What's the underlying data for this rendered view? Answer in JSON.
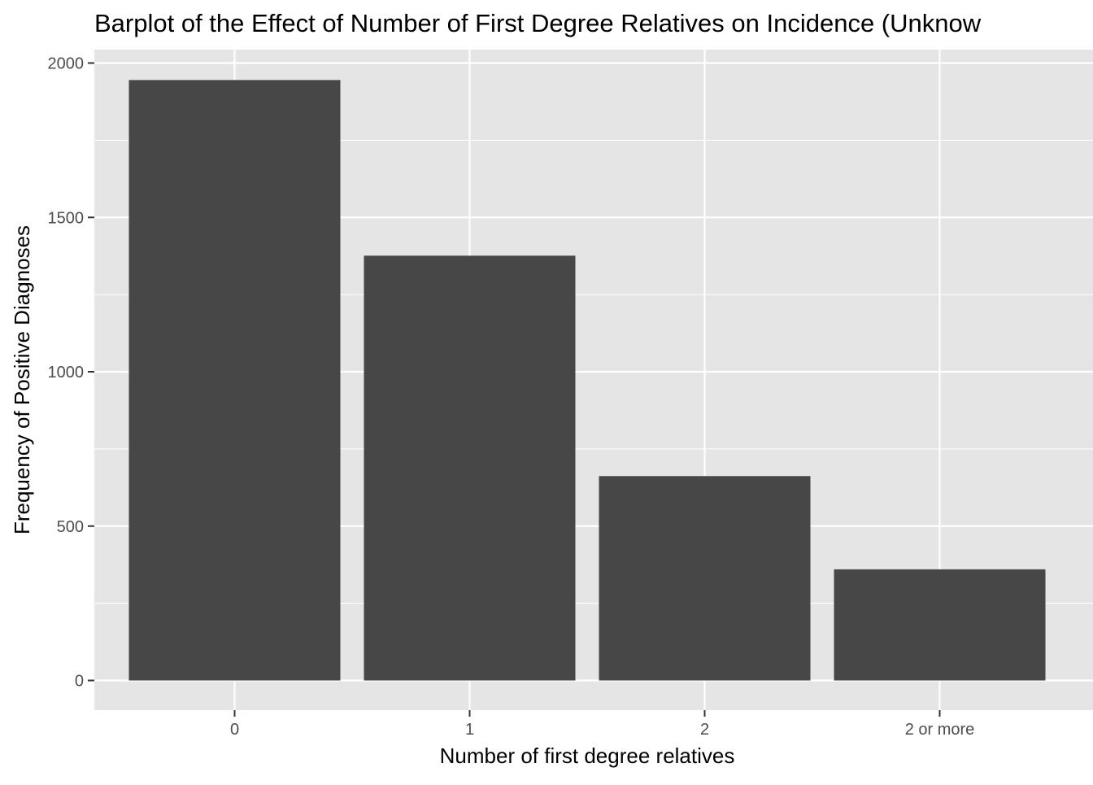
{
  "chart_data": {
    "type": "bar",
    "title": "Barplot of the Effect of Number of First Degree Relatives on Incidence (Unknow",
    "xlabel": "Number of first degree relatives",
    "ylabel": "Frequency of Positive Diagnoses",
    "categories": [
      "0",
      "1",
      "2",
      "2 or more"
    ],
    "values": [
      1945,
      1376,
      662,
      360
    ],
    "ylim": [
      0,
      2000
    ],
    "yticks": [
      0,
      500,
      1000,
      1500,
      2000
    ],
    "grid": true,
    "legend": "none",
    "colors": {
      "panel_background": "#e5e5e5",
      "grid": "#ffffff",
      "bar_fill": "#474747",
      "tick": "#333333",
      "tick_label": "#4d4d4d"
    }
  }
}
